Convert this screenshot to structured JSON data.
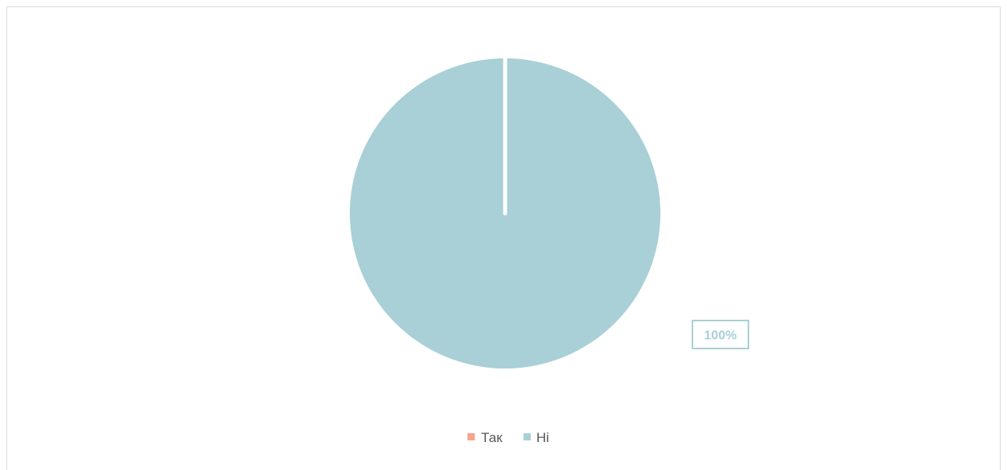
{
  "chart_data": {
    "type": "pie",
    "categories": [
      "Так",
      "Ні"
    ],
    "values": [
      0,
      100
    ],
    "colors": [
      "#f4a58a",
      "#a8d0d6"
    ],
    "data_labels": [
      "",
      "100%"
    ],
    "legend": {
      "position": "bottom",
      "items": [
        "Так",
        "Ні"
      ]
    }
  }
}
